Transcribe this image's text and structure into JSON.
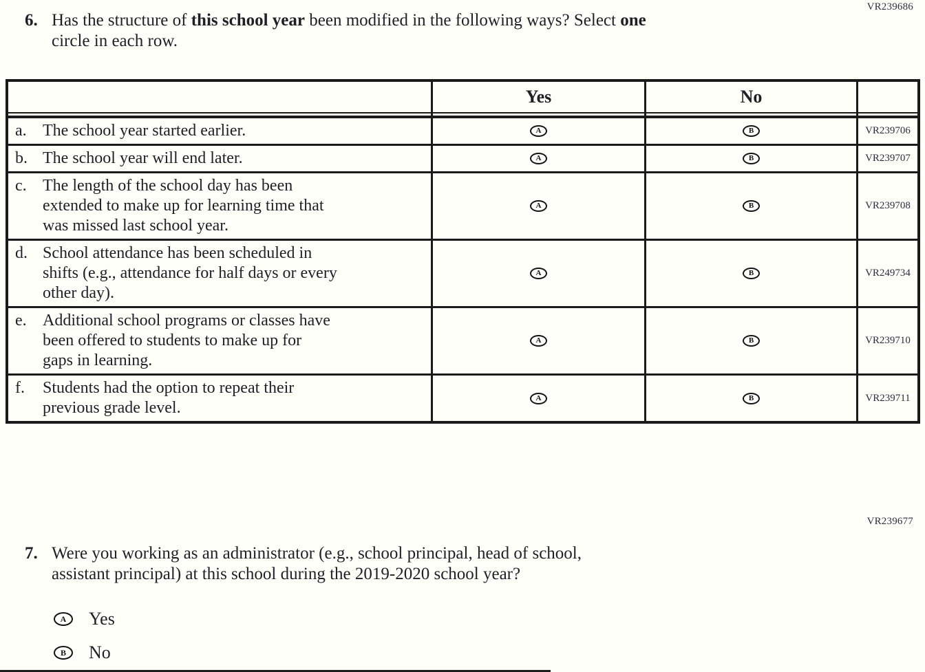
{
  "codes": {
    "q6_block": "VR239686",
    "q7_block": "VR239677"
  },
  "q6": {
    "number": "6.",
    "line1_part1": "Has the structure of ",
    "line1_bold1": "this school year",
    "line1_part2": " been modified in the following ways? Select ",
    "line1_bold2": "one",
    "line2": "circle in each row.",
    "table": {
      "header": {
        "yes": "Yes",
        "no": "No"
      },
      "rows": [
        {
          "letter": "a.",
          "lines": [
            "The school year started earlier."
          ],
          "yes_letter": "A",
          "no_letter": "B",
          "code": "VR239706"
        },
        {
          "letter": "b.",
          "lines": [
            "The school year will end later."
          ],
          "yes_letter": "A",
          "no_letter": "B",
          "code": "VR239707"
        },
        {
          "letter": "c.",
          "lines": [
            "The length of the school day has been",
            "extended to make up for learning time that",
            "was missed last school year."
          ],
          "yes_letter": "A",
          "no_letter": "B",
          "code": "VR239708"
        },
        {
          "letter": "d.",
          "lines": [
            "School attendance has been scheduled in",
            "shifts (e.g., attendance for half days or every",
            "other day)."
          ],
          "yes_letter": "A",
          "no_letter": "B",
          "code": "VR249734"
        },
        {
          "letter": "e.",
          "lines": [
            "Additional school programs or classes have",
            "been offered to students to make up for",
            "gaps in learning."
          ],
          "yes_letter": "A",
          "no_letter": "B",
          "code": "VR239710"
        },
        {
          "letter": "f.",
          "lines": [
            "Students had the option to repeat their",
            "previous grade level."
          ],
          "yes_letter": "A",
          "no_letter": "B",
          "code": "VR239711"
        }
      ]
    }
  },
  "q7": {
    "number": "7.",
    "line1": "Were you working as an administrator (e.g., school principal, head of school,",
    "line2": "assistant principal) at this school during the 2019-2020 school year?",
    "options": [
      {
        "letter": "A",
        "label": "Yes"
      },
      {
        "letter": "B",
        "label": "No"
      }
    ]
  }
}
